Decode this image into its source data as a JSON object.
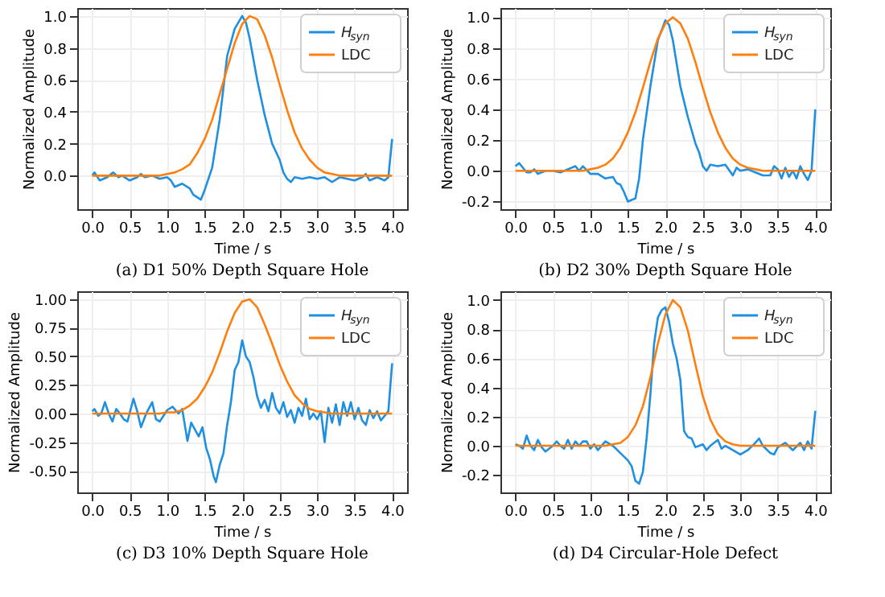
{
  "chart_data": [
    {
      "type": "line",
      "title": "(a) D1 50% Depth Square Hole",
      "xlabel": "Time / s",
      "ylabel": "Normalized Amplitude",
      "legend": "top right",
      "grid": true,
      "line_style": "solid",
      "marker": "none",
      "xlim": [
        -0.2,
        4.2
      ],
      "ylim": [
        -0.21,
        1.05
      ],
      "xticks": [
        {
          "value": 0,
          "label": "0.0"
        },
        {
          "value": 0.5,
          "label": "0.5"
        },
        {
          "value": 1,
          "label": "1.0"
        },
        {
          "value": 1.5,
          "label": "1.5"
        },
        {
          "value": 2,
          "label": "2.0"
        },
        {
          "value": 2.5,
          "label": "2.5"
        },
        {
          "value": 3,
          "label": "3.0"
        },
        {
          "value": 3.5,
          "label": "3.5"
        },
        {
          "value": 4,
          "label": "4.0"
        }
      ],
      "yticks": [
        {
          "value": 0,
          "label": "0.0"
        },
        {
          "value": 0.2,
          "label": "0.2"
        },
        {
          "value": 0.4,
          "label": "0.4"
        },
        {
          "value": 0.6,
          "label": "0.6"
        },
        {
          "value": 0.8,
          "label": "0.8"
        },
        {
          "value": 1,
          "label": "1.0"
        }
      ],
      "series": [
        {
          "name": "H$_{syn}$",
          "color": "#1f8fe0",
          "x": [
            0.0,
            0.03,
            0.1,
            0.2,
            0.28,
            0.35,
            0.4,
            0.5,
            0.6,
            0.65,
            0.7,
            0.8,
            0.9,
            1.0,
            1.05,
            1.1,
            1.2,
            1.3,
            1.35,
            1.45,
            1.5,
            1.6,
            1.7,
            1.8,
            1.9,
            2.0,
            2.05,
            2.1,
            2.2,
            2.3,
            2.4,
            2.5,
            2.55,
            2.6,
            2.65,
            2.7,
            2.8,
            2.9,
            3.0,
            3.1,
            3.2,
            3.3,
            3.4,
            3.5,
            3.6,
            3.65,
            3.7,
            3.8,
            3.9,
            3.95,
            4.0
          ],
          "values": [
            0.0,
            0.02,
            -0.03,
            -0.01,
            0.02,
            -0.01,
            0.0,
            -0.03,
            -0.01,
            0.01,
            -0.01,
            0.0,
            -0.02,
            -0.01,
            -0.03,
            -0.07,
            -0.05,
            -0.08,
            -0.12,
            -0.15,
            -0.09,
            0.05,
            0.35,
            0.75,
            0.92,
            1.0,
            0.96,
            0.86,
            0.6,
            0.38,
            0.2,
            0.1,
            0.02,
            -0.02,
            -0.04,
            -0.01,
            -0.02,
            -0.01,
            -0.02,
            -0.01,
            -0.04,
            -0.01,
            -0.02,
            -0.03,
            -0.01,
            0.01,
            -0.03,
            -0.01,
            -0.03,
            -0.01,
            0.23
          ]
        },
        {
          "name": "LDC",
          "color": "#ff7f0e",
          "x": [
            0.0,
            0.5,
            0.9,
            1.0,
            1.1,
            1.2,
            1.3,
            1.4,
            1.5,
            1.6,
            1.7,
            1.8,
            1.9,
            2.0,
            2.1,
            2.2,
            2.3,
            2.4,
            2.5,
            2.6,
            2.7,
            2.8,
            2.9,
            3.0,
            3.1,
            3.2,
            3.3,
            3.5,
            4.0
          ],
          "values": [
            0.0,
            0.0,
            0.0,
            0.01,
            0.02,
            0.04,
            0.07,
            0.14,
            0.23,
            0.35,
            0.51,
            0.67,
            0.83,
            0.95,
            1.0,
            0.98,
            0.88,
            0.74,
            0.57,
            0.41,
            0.27,
            0.17,
            0.1,
            0.05,
            0.02,
            0.01,
            0.0,
            0.0,
            0.0
          ]
        }
      ]
    },
    {
      "type": "line",
      "title": "(b) D2 30% Depth Square Hole",
      "xlabel": "Time / s",
      "ylabel": "Normalized Amplitude",
      "legend": "top right",
      "grid": true,
      "line_style": "solid",
      "marker": "none",
      "xlim": [
        -0.2,
        4.2
      ],
      "ylim": [
        -0.25,
        1.06
      ],
      "xticks": [
        {
          "value": 0,
          "label": "0.0"
        },
        {
          "value": 0.5,
          "label": "0.5"
        },
        {
          "value": 1,
          "label": "1.0"
        },
        {
          "value": 1.5,
          "label": "1.5"
        },
        {
          "value": 2,
          "label": "2.0"
        },
        {
          "value": 2.5,
          "label": "2.5"
        },
        {
          "value": 3,
          "label": "3.0"
        },
        {
          "value": 3.5,
          "label": "3.5"
        },
        {
          "value": 4,
          "label": "4.0"
        }
      ],
      "yticks": [
        -0.2,
        {
          "value": 0,
          "label": "0.0"
        },
        0.2,
        0.4,
        0.6,
        0.8,
        {
          "value": 1,
          "label": "1.0"
        }
      ],
      "series": [
        {
          "name": "H$_{syn}$",
          "color": "#1f8fe0",
          "x": [
            0.0,
            0.05,
            0.1,
            0.15,
            0.2,
            0.25,
            0.3,
            0.4,
            0.5,
            0.6,
            0.7,
            0.8,
            0.85,
            0.9,
            1.0,
            1.1,
            1.2,
            1.3,
            1.35,
            1.4,
            1.45,
            1.5,
            1.55,
            1.6,
            1.65,
            1.7,
            1.8,
            1.9,
            2.0,
            2.05,
            2.1,
            2.2,
            2.3,
            2.4,
            2.45,
            2.5,
            2.55,
            2.6,
            2.7,
            2.8,
            2.9,
            2.95,
            3.0,
            3.1,
            3.2,
            3.3,
            3.4,
            3.45,
            3.5,
            3.55,
            3.6,
            3.65,
            3.7,
            3.75,
            3.8,
            3.85,
            3.9,
            3.95,
            4.0
          ],
          "values": [
            0.03,
            0.05,
            0.02,
            -0.01,
            -0.01,
            0.01,
            -0.02,
            0.0,
            0.0,
            -0.01,
            0.01,
            0.03,
            0.0,
            0.03,
            -0.02,
            -0.02,
            -0.05,
            -0.04,
            -0.08,
            -0.09,
            -0.14,
            -0.2,
            -0.19,
            -0.18,
            -0.05,
            0.2,
            0.55,
            0.85,
            0.98,
            0.95,
            0.85,
            0.55,
            0.35,
            0.18,
            0.12,
            0.03,
            0.0,
            0.04,
            0.03,
            0.04,
            -0.03,
            0.02,
            0.0,
            0.01,
            -0.01,
            -0.03,
            -0.03,
            0.03,
            0.01,
            -0.05,
            0.02,
            -0.04,
            0.0,
            -0.05,
            0.03,
            -0.02,
            -0.06,
            0.0,
            0.4
          ]
        },
        {
          "name": "LDC",
          "color": "#ff7f0e",
          "x": [
            0.0,
            0.5,
            0.9,
            1.0,
            1.1,
            1.2,
            1.3,
            1.4,
            1.5,
            1.6,
            1.7,
            1.8,
            1.9,
            2.0,
            2.1,
            2.2,
            2.3,
            2.4,
            2.5,
            2.6,
            2.7,
            2.8,
            2.9,
            3.0,
            3.1,
            3.2,
            3.3,
            3.5,
            4.0
          ],
          "values": [
            0.0,
            0.0,
            0.0,
            0.01,
            0.02,
            0.04,
            0.08,
            0.15,
            0.25,
            0.38,
            0.54,
            0.71,
            0.86,
            0.96,
            1.0,
            0.96,
            0.86,
            0.71,
            0.54,
            0.38,
            0.25,
            0.15,
            0.08,
            0.04,
            0.02,
            0.01,
            0.0,
            0.0,
            0.0
          ]
        }
      ]
    },
    {
      "type": "line",
      "title": "(c) D3 10% Depth Square Hole",
      "xlabel": "Time / s",
      "ylabel": "Normalized Amplitude",
      "legend": "top right",
      "grid": true,
      "line_style": "solid",
      "marker": "none",
      "xlim": [
        -0.2,
        4.2
      ],
      "ylim": [
        -0.69,
        1.07
      ],
      "xticks": [
        {
          "value": 0,
          "label": "0.0"
        },
        {
          "value": 0.5,
          "label": "0.5"
        },
        {
          "value": 1,
          "label": "1.0"
        },
        {
          "value": 1.5,
          "label": "1.5"
        },
        {
          "value": 2,
          "label": "2.0"
        },
        {
          "value": 2.5,
          "label": "2.5"
        },
        {
          "value": 3,
          "label": "3.0"
        },
        {
          "value": 3.5,
          "label": "3.5"
        },
        {
          "value": 4,
          "label": "4.0"
        }
      ],
      "yticks": [
        {
          "value": -0.5,
          "label": "-0.50"
        },
        {
          "value": -0.25,
          "label": "-0.25"
        },
        {
          "value": 0,
          "label": "0.00"
        },
        {
          "value": 0.25,
          "label": "0.25"
        },
        {
          "value": 0.5,
          "label": "0.50"
        },
        {
          "value": 0.75,
          "label": "0.75"
        },
        {
          "value": 1,
          "label": "1.00"
        }
      ],
      "series": [
        {
          "name": "H$_{syn}$",
          "color": "#1f8fe0",
          "x": [
            0.0,
            0.03,
            0.08,
            0.12,
            0.17,
            0.22,
            0.27,
            0.32,
            0.37,
            0.42,
            0.47,
            0.55,
            0.6,
            0.65,
            0.72,
            0.8,
            0.85,
            0.9,
            1.0,
            1.07,
            1.15,
            1.2,
            1.23,
            1.27,
            1.32,
            1.37,
            1.42,
            1.47,
            1.52,
            1.57,
            1.62,
            1.65,
            1.7,
            1.75,
            1.8,
            1.85,
            1.9,
            1.95,
            2.0,
            2.05,
            2.1,
            2.15,
            2.2,
            2.25,
            2.3,
            2.35,
            2.4,
            2.45,
            2.5,
            2.55,
            2.6,
            2.65,
            2.7,
            2.75,
            2.8,
            2.85,
            2.9,
            2.95,
            3.0,
            3.05,
            3.1,
            3.15,
            3.2,
            3.25,
            3.3,
            3.35,
            3.4,
            3.45,
            3.5,
            3.55,
            3.6,
            3.65,
            3.7,
            3.75,
            3.8,
            3.85,
            3.9,
            3.95,
            4.0
          ],
          "values": [
            0.02,
            0.04,
            -0.02,
            0.0,
            0.1,
            0.0,
            -0.07,
            0.04,
            0.0,
            -0.05,
            -0.07,
            0.13,
            0.02,
            -0.12,
            0.0,
            0.1,
            -0.05,
            -0.07,
            0.03,
            0.06,
            0.0,
            0.04,
            -0.08,
            -0.24,
            -0.08,
            -0.14,
            -0.2,
            -0.12,
            -0.3,
            -0.4,
            -0.55,
            -0.6,
            -0.45,
            -0.35,
            -0.1,
            0.1,
            0.38,
            0.45,
            0.64,
            0.5,
            0.45,
            0.32,
            0.15,
            0.05,
            0.12,
            0.02,
            0.18,
            0.05,
            0.0,
            0.1,
            -0.03,
            0.03,
            -0.08,
            0.05,
            -0.02,
            0.13,
            -0.05,
            0.0,
            -0.05,
            0.02,
            -0.25,
            0.05,
            -0.08,
            0.08,
            -0.1,
            0.1,
            -0.02,
            0.1,
            -0.05,
            0.05,
            -0.06,
            -0.1,
            0.03,
            -0.04,
            0.02,
            -0.06,
            -0.02,
            0.02,
            0.44
          ]
        },
        {
          "name": "LDC",
          "color": "#ff7f0e",
          "x": [
            0.0,
            0.5,
            0.9,
            1.0,
            1.1,
            1.2,
            1.3,
            1.4,
            1.5,
            1.6,
            1.7,
            1.8,
            1.9,
            2.0,
            2.1,
            2.2,
            2.3,
            2.4,
            2.5,
            2.6,
            2.7,
            2.8,
            2.9,
            3.0,
            3.1,
            3.2,
            3.5,
            4.0
          ],
          "values": [
            0.0,
            0.0,
            0.0,
            0.01,
            0.01,
            0.03,
            0.07,
            0.13,
            0.23,
            0.36,
            0.53,
            0.72,
            0.88,
            0.98,
            1.0,
            0.93,
            0.78,
            0.61,
            0.43,
            0.28,
            0.16,
            0.09,
            0.04,
            0.02,
            0.01,
            0.0,
            0.0,
            0.0
          ]
        }
      ]
    },
    {
      "type": "line",
      "title": "(d) D4 Circular-Hole Defect",
      "xlabel": "Time / s",
      "ylabel": "Normalized Amplitude",
      "legend": "top right",
      "grid": true,
      "line_style": "solid",
      "marker": "none",
      "xlim": [
        -0.2,
        4.2
      ],
      "ylim": [
        -0.32,
        1.06
      ],
      "xticks": [
        {
          "value": 0,
          "label": "0.0"
        },
        {
          "value": 0.5,
          "label": "0.5"
        },
        {
          "value": 1,
          "label": "1.0"
        },
        {
          "value": 1.5,
          "label": "1.5"
        },
        {
          "value": 2,
          "label": "2.0"
        },
        {
          "value": 2.5,
          "label": "2.5"
        },
        {
          "value": 3,
          "label": "3.0"
        },
        {
          "value": 3.5,
          "label": "3.5"
        },
        {
          "value": 4,
          "label": "4.0"
        }
      ],
      "yticks": [
        -0.2,
        {
          "value": 0,
          "label": "0.0"
        },
        0.2,
        0.4,
        0.6,
        0.8,
        {
          "value": 1,
          "label": "1.0"
        }
      ],
      "series": [
        {
          "name": "H$_{syn}$",
          "color": "#1f8fe0",
          "x": [
            0.0,
            0.05,
            0.1,
            0.15,
            0.2,
            0.25,
            0.3,
            0.35,
            0.4,
            0.5,
            0.55,
            0.6,
            0.65,
            0.7,
            0.75,
            0.8,
            0.85,
            0.9,
            0.95,
            1.0,
            1.05,
            1.1,
            1.2,
            1.3,
            1.4,
            1.5,
            1.55,
            1.6,
            1.65,
            1.7,
            1.75,
            1.8,
            1.85,
            1.9,
            1.95,
            2.0,
            2.05,
            2.1,
            2.15,
            2.2,
            2.25,
            2.3,
            2.35,
            2.4,
            2.5,
            2.55,
            2.6,
            2.7,
            2.75,
            2.8,
            2.9,
            3.0,
            3.1,
            3.2,
            3.25,
            3.3,
            3.4,
            3.45,
            3.5,
            3.6,
            3.7,
            3.8,
            3.85,
            3.9,
            3.95,
            4.0
          ],
          "values": [
            0.01,
            0.0,
            -0.02,
            0.07,
            0.0,
            -0.03,
            0.04,
            -0.01,
            -0.04,
            0.0,
            0.03,
            0.0,
            -0.02,
            0.04,
            -0.02,
            0.03,
            0.0,
            0.03,
            0.03,
            -0.02,
            0.01,
            -0.03,
            0.03,
            0.0,
            -0.05,
            -0.1,
            -0.14,
            -0.24,
            -0.26,
            -0.18,
            0.05,
            0.35,
            0.7,
            0.88,
            0.93,
            0.95,
            0.85,
            0.7,
            0.6,
            0.45,
            0.1,
            0.06,
            0.05,
            -0.01,
            0.01,
            -0.03,
            0.0,
            0.04,
            -0.02,
            0.0,
            -0.03,
            -0.06,
            -0.03,
            0.02,
            0.05,
            0.0,
            -0.05,
            -0.06,
            -0.01,
            0.02,
            -0.03,
            0.02,
            -0.03,
            0.03,
            -0.02,
            0.24
          ]
        },
        {
          "name": "LDC",
          "color": "#ff7f0e",
          "x": [
            0.0,
            0.5,
            1.0,
            1.2,
            1.3,
            1.4,
            1.5,
            1.6,
            1.7,
            1.8,
            1.9,
            2.0,
            2.1,
            2.2,
            2.3,
            2.4,
            2.5,
            2.6,
            2.7,
            2.8,
            2.9,
            3.0,
            3.5,
            4.0
          ],
          "values": [
            0.0,
            0.0,
            0.0,
            0.0,
            0.01,
            0.02,
            0.06,
            0.14,
            0.27,
            0.47,
            0.7,
            0.9,
            1.0,
            0.95,
            0.79,
            0.56,
            0.34,
            0.18,
            0.08,
            0.03,
            0.01,
            0.0,
            0.0,
            0.0
          ]
        }
      ]
    }
  ]
}
